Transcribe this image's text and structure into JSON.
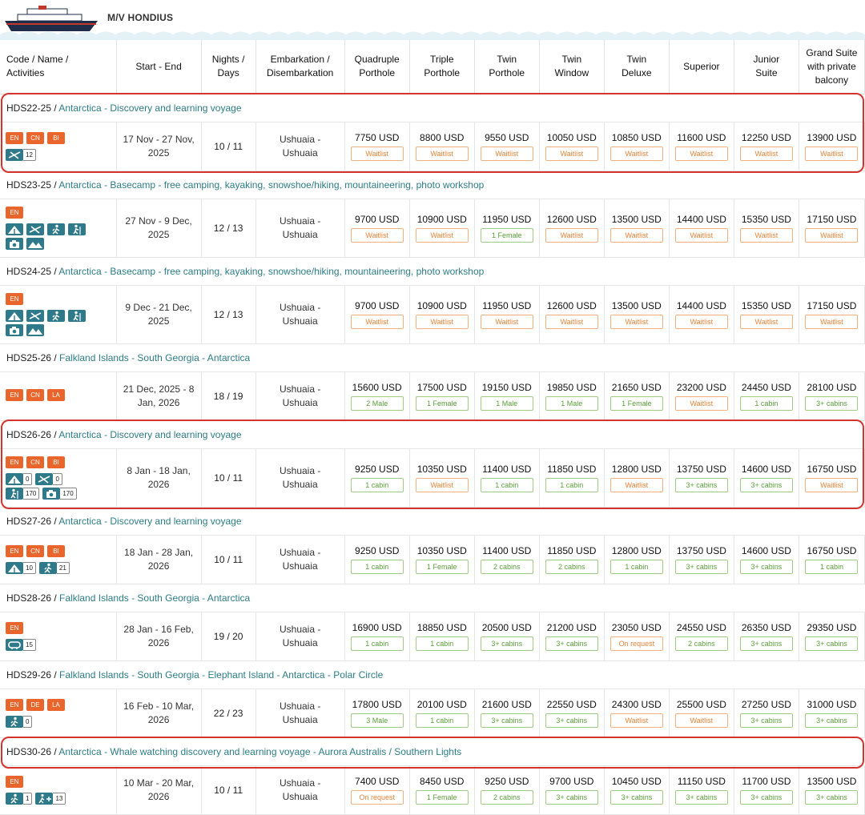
{
  "ship_name": "M/V HONDIUS",
  "colors": {
    "accent": "#2d7d86",
    "lang_badge": "#e9652b",
    "activity_icon": "#2f7a8a",
    "highlight": "#d5332e",
    "status_orange": "#e8843a",
    "status_green": "#5a9e3a"
  },
  "headers": {
    "code_line1": "Code / Name /",
    "code_line2": "Activities",
    "dates": "Start - End",
    "nights_line1": "Nights /",
    "nights_line2": "Days",
    "port_line1": "Embarkation /",
    "port_line2": "Disembarkation",
    "cabins": [
      [
        "Quadruple",
        "Porthole"
      ],
      [
        "Triple",
        "Porthole"
      ],
      [
        "Twin",
        "Porthole"
      ],
      [
        "Twin",
        "Window"
      ],
      [
        "Twin",
        "Deluxe"
      ],
      [
        "Superior"
      ],
      [
        "Junior",
        "Suite"
      ],
      [
        "Grand Suite",
        "with private",
        "balcony"
      ]
    ]
  },
  "voyages": [
    {
      "code": "HDS22-25",
      "name": "Antarctica - Discovery and learning voyage",
      "langs": [
        "EN",
        "CN",
        "BI"
      ],
      "activities": [
        {
          "icon": "kayak-icon",
          "count": "12"
        }
      ],
      "date1": "17 Nov - 27 Nov,",
      "date2": "2025",
      "nights": "10 / 11",
      "port1": "Ushuaia -",
      "port2": "Ushuaia",
      "highlighted": true,
      "prices": [
        {
          "p": "7750 USD",
          "s": "Waitlist",
          "c": "o"
        },
        {
          "p": "8800 USD",
          "s": "Waitlist",
          "c": "o"
        },
        {
          "p": "9550 USD",
          "s": "Waitlist",
          "c": "o"
        },
        {
          "p": "10050 USD",
          "s": "Waitlist",
          "c": "o"
        },
        {
          "p": "10850 USD",
          "s": "Waitlist",
          "c": "o"
        },
        {
          "p": "11600 USD",
          "s": "Waitlist",
          "c": "o"
        },
        {
          "p": "12250 USD",
          "s": "Waitlist",
          "c": "o"
        },
        {
          "p": "13900 USD",
          "s": "Waitlist",
          "c": "o"
        }
      ]
    },
    {
      "code": "HDS23-25",
      "name": "Antarctica - Basecamp - free camping, kayaking, snowshoe/hiking, mountaineering, photo workshop",
      "langs": [
        "EN"
      ],
      "activities": [
        {
          "icon": "camping-icon"
        },
        {
          "icon": "kayak-icon"
        },
        {
          "icon": "hiking-icon"
        },
        {
          "icon": "snowshoe-icon"
        },
        {
          "icon": "photo-icon"
        },
        {
          "icon": "mountain-icon"
        }
      ],
      "date1": "27 Nov - 9 Dec,",
      "date2": "2025",
      "nights": "12 / 13",
      "port1": "Ushuaia -",
      "port2": "Ushuaia",
      "highlighted": false,
      "prices": [
        {
          "p": "9700 USD",
          "s": "Waitlist",
          "c": "o"
        },
        {
          "p": "10900 USD",
          "s": "Waitlist",
          "c": "o"
        },
        {
          "p": "11950 USD",
          "s": "1 Female",
          "c": "g"
        },
        {
          "p": "12600 USD",
          "s": "Waitlist",
          "c": "o"
        },
        {
          "p": "13500 USD",
          "s": "Waitlist",
          "c": "o"
        },
        {
          "p": "14400 USD",
          "s": "Waitlist",
          "c": "o"
        },
        {
          "p": "15350 USD",
          "s": "Waitlist",
          "c": "o"
        },
        {
          "p": "17150 USD",
          "s": "Waitlist",
          "c": "o"
        }
      ]
    },
    {
      "code": "HDS24-25",
      "name": "Antarctica - Basecamp - free camping, kayaking, snowshoe/hiking, mountaineering, photo workshop",
      "langs": [
        "EN"
      ],
      "activities": [
        {
          "icon": "camping-icon"
        },
        {
          "icon": "kayak-icon"
        },
        {
          "icon": "hiking-icon"
        },
        {
          "icon": "snowshoe-icon"
        },
        {
          "icon": "photo-icon"
        },
        {
          "icon": "mountain-icon"
        }
      ],
      "date1": "9 Dec - 21 Dec,",
      "date2": "2025",
      "nights": "12 / 13",
      "port1": "Ushuaia -",
      "port2": "Ushuaia",
      "highlighted": false,
      "prices": [
        {
          "p": "9700 USD",
          "s": "Waitlist",
          "c": "o"
        },
        {
          "p": "10900 USD",
          "s": "Waitlist",
          "c": "o"
        },
        {
          "p": "11950 USD",
          "s": "Waitlist",
          "c": "o"
        },
        {
          "p": "12600 USD",
          "s": "Waitlist",
          "c": "o"
        },
        {
          "p": "13500 USD",
          "s": "Waitlist",
          "c": "o"
        },
        {
          "p": "14400 USD",
          "s": "Waitlist",
          "c": "o"
        },
        {
          "p": "15350 USD",
          "s": "Waitlist",
          "c": "o"
        },
        {
          "p": "17150 USD",
          "s": "Waitlist",
          "c": "o"
        }
      ]
    },
    {
      "code": "HDS25-26",
      "name": "Falkland Islands - South Georgia - Antarctica",
      "langs": [
        "EN",
        "CN",
        "LA"
      ],
      "activities": [],
      "date1": "21 Dec, 2025 - 8",
      "date2": "Jan, 2026",
      "nights": "18 / 19",
      "port1": "Ushuaia -",
      "port2": "Ushuaia",
      "highlighted": false,
      "prices": [
        {
          "p": "15600 USD",
          "s": "2 Male",
          "c": "g"
        },
        {
          "p": "17500 USD",
          "s": "1 Female",
          "c": "g"
        },
        {
          "p": "19150 USD",
          "s": "1 Male",
          "c": "g"
        },
        {
          "p": "19850 USD",
          "s": "1 Male",
          "c": "g"
        },
        {
          "p": "21650 USD",
          "s": "1 Female",
          "c": "g"
        },
        {
          "p": "23200 USD",
          "s": "Waitlist",
          "c": "o"
        },
        {
          "p": "24450 USD",
          "s": "1 cabin",
          "c": "g"
        },
        {
          "p": "28100 USD",
          "s": "3+ cabins",
          "c": "g"
        }
      ]
    },
    {
      "code": "HDS26-26",
      "name": "Antarctica - Discovery and learning voyage",
      "langs": [
        "EN",
        "CN",
        "BI"
      ],
      "activities": [
        {
          "icon": "camping-icon",
          "count": "0"
        },
        {
          "icon": "kayak-icon",
          "count": "0"
        },
        {
          "icon": "snowshoe-icon",
          "count": "170"
        },
        {
          "icon": "photo-icon",
          "count": "170"
        }
      ],
      "date1": "8 Jan - 18 Jan,",
      "date2": "2026",
      "nights": "10 / 11",
      "port1": "Ushuaia -",
      "port2": "Ushuaia",
      "highlighted": true,
      "prices": [
        {
          "p": "9250 USD",
          "s": "1 cabin",
          "c": "g"
        },
        {
          "p": "10350 USD",
          "s": "Waitlist",
          "c": "o"
        },
        {
          "p": "11400 USD",
          "s": "1 cabin",
          "c": "g"
        },
        {
          "p": "11850 USD",
          "s": "1 cabin",
          "c": "g"
        },
        {
          "p": "12800 USD",
          "s": "Waitlist",
          "c": "o"
        },
        {
          "p": "13750 USD",
          "s": "3+ cabins",
          "c": "g"
        },
        {
          "p": "14600 USD",
          "s": "3+ cabins",
          "c": "g"
        },
        {
          "p": "16750 USD",
          "s": "Waitlist",
          "c": "o"
        }
      ]
    },
    {
      "code": "HDS27-26",
      "name": "Antarctica - Discovery and learning voyage",
      "langs": [
        "EN",
        "CN",
        "BI"
      ],
      "activities": [
        {
          "icon": "camping-icon",
          "count": "10"
        },
        {
          "icon": "hiking-icon",
          "count": "21"
        }
      ],
      "date1": "18 Jan - 28 Jan,",
      "date2": "2026",
      "nights": "10 / 11",
      "port1": "Ushuaia -",
      "port2": "Ushuaia",
      "highlighted": false,
      "prices": [
        {
          "p": "9250 USD",
          "s": "1 cabin",
          "c": "g"
        },
        {
          "p": "10350 USD",
          "s": "1 Female",
          "c": "g"
        },
        {
          "p": "11400 USD",
          "s": "2 cabins",
          "c": "g"
        },
        {
          "p": "11850 USD",
          "s": "2 cabins",
          "c": "g"
        },
        {
          "p": "12800 USD",
          "s": "1 cabin",
          "c": "g"
        },
        {
          "p": "13750 USD",
          "s": "3+ cabins",
          "c": "g"
        },
        {
          "p": "14600 USD",
          "s": "3+ cabins",
          "c": "g"
        },
        {
          "p": "16750 USD",
          "s": "1 cabin",
          "c": "g"
        }
      ]
    },
    {
      "code": "HDS28-26",
      "name": "Falkland Islands - South Georgia - Antarctica",
      "langs": [
        "EN"
      ],
      "activities": [
        {
          "icon": "diving-icon",
          "count": "15"
        }
      ],
      "date1": "28 Jan - 16 Feb,",
      "date2": "2026",
      "nights": "19 / 20",
      "port1": "Ushuaia -",
      "port2": "Ushuaia",
      "highlighted": false,
      "prices": [
        {
          "p": "16900 USD",
          "s": "1 cabin",
          "c": "g"
        },
        {
          "p": "18850 USD",
          "s": "1 cabin",
          "c": "g"
        },
        {
          "p": "20500 USD",
          "s": "3+ cabins",
          "c": "g"
        },
        {
          "p": "21200 USD",
          "s": "3+ cabins",
          "c": "g"
        },
        {
          "p": "23050 USD",
          "s": "On request",
          "c": "o"
        },
        {
          "p": "24550 USD",
          "s": "2 cabins",
          "c": "g"
        },
        {
          "p": "26350 USD",
          "s": "3+ cabins",
          "c": "g"
        },
        {
          "p": "29350 USD",
          "s": "3+ cabins",
          "c": "g"
        }
      ]
    },
    {
      "code": "HDS29-26",
      "name": "Falkland Islands - South Georgia - Elephant Island - Antarctica - Polar Circle",
      "langs": [
        "EN",
        "DE",
        "LA"
      ],
      "activities": [
        {
          "icon": "hiking-icon",
          "count": "0"
        }
      ],
      "date1": "16 Feb - 10 Mar,",
      "date2": "2026",
      "nights": "22 / 23",
      "port1": "Ushuaia -",
      "port2": "Ushuaia",
      "highlighted": false,
      "prices": [
        {
          "p": "17800 USD",
          "s": "3 Male",
          "c": "g"
        },
        {
          "p": "20100 USD",
          "s": "1 cabin",
          "c": "g"
        },
        {
          "p": "21600 USD",
          "s": "3+ cabins",
          "c": "g"
        },
        {
          "p": "22550 USD",
          "s": "3+ cabins",
          "c": "g"
        },
        {
          "p": "24300 USD",
          "s": "Waitlist",
          "c": "o"
        },
        {
          "p": "25500 USD",
          "s": "Waitlist",
          "c": "o"
        },
        {
          "p": "27250 USD",
          "s": "3+ cabins",
          "c": "g"
        },
        {
          "p": "31000 USD",
          "s": "3+ cabins",
          "c": "g"
        }
      ]
    },
    {
      "code": "HDS30-26",
      "name": "Antarctica - Whale watching discovery and learning voyage - Aurora Australis / Southern Lights",
      "langs": [
        "EN"
      ],
      "activities": [
        {
          "icon": "hiking-icon",
          "count": "1"
        },
        {
          "icon": "hiking-plus-icon",
          "count": "13"
        }
      ],
      "date1": "10 Mar - 20 Mar,",
      "date2": "2026",
      "nights": "10 / 11",
      "port1": "Ushuaia -",
      "port2": "Ushuaia",
      "highlighted": true,
      "prices": [
        {
          "p": "7400 USD",
          "s": "On request",
          "c": "o"
        },
        {
          "p": "8450 USD",
          "s": "1 Female",
          "c": "g"
        },
        {
          "p": "9250 USD",
          "s": "2 cabins",
          "c": "g"
        },
        {
          "p": "9700 USD",
          "s": "3+ cabins",
          "c": "g"
        },
        {
          "p": "10450 USD",
          "s": "3+ cabins",
          "c": "g"
        },
        {
          "p": "11150 USD",
          "s": "3+ cabins",
          "c": "g"
        },
        {
          "p": "11700 USD",
          "s": "3+ cabins",
          "c": "g"
        },
        {
          "p": "13500 USD",
          "s": "3+ cabins",
          "c": "g"
        }
      ]
    }
  ]
}
